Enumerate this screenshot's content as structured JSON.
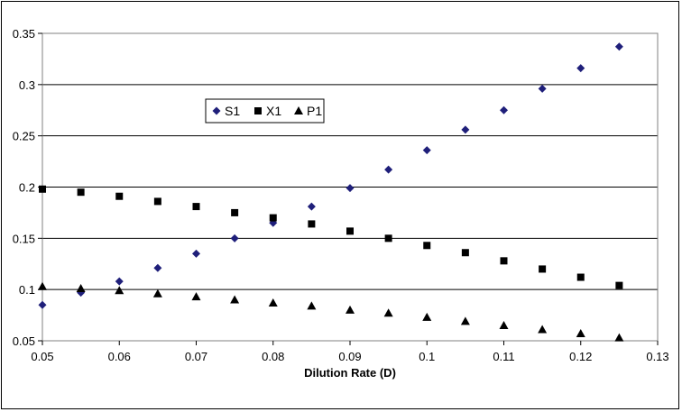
{
  "chart_data": {
    "type": "scatter",
    "title": "",
    "xlabel": "Dilution Rate (D)",
    "ylabel": "",
    "xlim": [
      0.05,
      0.13
    ],
    "ylim": [
      0.05,
      0.35
    ],
    "x_ticks": [
      "0.05",
      "0.06",
      "0.07",
      "0.08",
      "0.09",
      "0.1",
      "0.11",
      "0.12",
      "0.13"
    ],
    "y_ticks": [
      "0.05",
      "0.1",
      "0.15",
      "0.2",
      "0.25",
      "0.3",
      "0.35"
    ],
    "grid": "horizontal",
    "legend_position": "upper-left-center",
    "x": [
      0.05,
      0.055,
      0.06,
      0.065,
      0.07,
      0.075,
      0.08,
      0.085,
      0.09,
      0.095,
      0.1,
      0.105,
      0.11,
      0.115,
      0.12,
      0.125
    ],
    "series": [
      {
        "name": "S1",
        "marker": "diamond",
        "color": "#1f1f7a",
        "values": [
          0.085,
          0.097,
          0.108,
          0.121,
          0.135,
          0.15,
          0.165,
          0.181,
          0.199,
          0.217,
          0.236,
          0.256,
          0.275,
          0.296,
          0.316,
          0.337
        ]
      },
      {
        "name": "X1",
        "marker": "square",
        "color": "#000000",
        "values": [
          0.198,
          0.195,
          0.191,
          0.186,
          0.181,
          0.175,
          0.17,
          0.164,
          0.157,
          0.15,
          0.143,
          0.136,
          0.128,
          0.12,
          0.112,
          0.104
        ]
      },
      {
        "name": "P1",
        "marker": "triangle",
        "color": "#000000",
        "values": [
          0.103,
          0.101,
          0.099,
          0.096,
          0.093,
          0.09,
          0.087,
          0.084,
          0.08,
          0.077,
          0.073,
          0.069,
          0.065,
          0.061,
          0.057,
          0.053
        ]
      }
    ]
  }
}
